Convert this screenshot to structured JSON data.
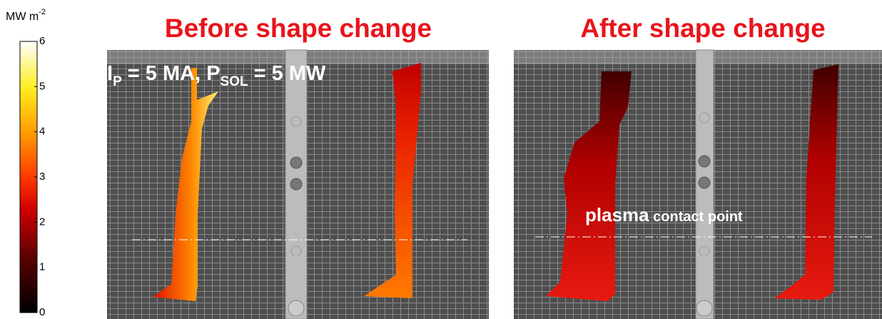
{
  "colorbar": {
    "unit": "MW m",
    "unit_exponent": "-2",
    "ticks": [
      "0",
      "1",
      "2",
      "3",
      "4",
      "5",
      "6"
    ]
  },
  "panels": [
    {
      "title": "Before shape change"
    },
    {
      "title": "After shape change"
    }
  ],
  "annotations": {
    "current": {
      "i": "I",
      "i_sub": "P",
      "mid": " = 5 MA, P",
      "p_sub": "SOL",
      "end": " = 5 MW"
    },
    "contact": {
      "big": "plasma",
      "small": " contact point"
    }
  }
}
